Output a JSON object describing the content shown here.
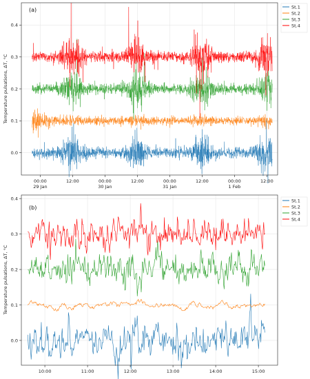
{
  "colors": {
    "St.1": "#1f77b4",
    "St.2": "#ff7f0e",
    "St.3": "#2ca02c",
    "St.4": "#ff0000"
  },
  "chart_data": [
    {
      "type": "line",
      "panel_label": "(a)",
      "ylabel": "Temperature pulsations, ΔT, °C",
      "ylim": [
        -0.07,
        0.47
      ],
      "yticks": [
        0.0,
        0.1,
        0.2,
        0.3,
        0.4
      ],
      "ytick_labels": [
        "0.0",
        "0.1",
        "0.2",
        "0.3",
        "0.4"
      ],
      "xlim_hours": [
        -7,
        66
      ],
      "xticks": [
        {
          "hour": 0,
          "line1": "00:00",
          "line2": "29 Jan"
        },
        {
          "hour": 12,
          "line1": "12:00",
          "line2": ""
        },
        {
          "hour": 24,
          "line1": "00:00",
          "line2": "30 Jan"
        },
        {
          "hour": 36,
          "line1": "12:00",
          "line2": ""
        },
        {
          "hour": 48,
          "line1": "00:00",
          "line2": "31 Jan"
        },
        {
          "hour": 60,
          "line1": "12:00",
          "line2": ""
        },
        {
          "hour": 72,
          "line1": "00:00",
          "line2": "1 Feb"
        },
        {
          "hour": 84,
          "line1": "12:00",
          "line2": ""
        }
      ],
      "grid": true,
      "legend": "top-right",
      "series": [
        {
          "name": "St.1",
          "offset": 0.0,
          "start_hour": -3,
          "end_hour": 86
        },
        {
          "name": "St.2",
          "offset": 0.1,
          "start_hour": -3,
          "end_hour": 86
        },
        {
          "name": "St.3",
          "offset": 0.2,
          "start_hour": -3,
          "end_hour": 86
        },
        {
          "name": "St.4",
          "offset": 0.3,
          "start_hour": -3,
          "end_hour": 86
        }
      ]
    },
    {
      "type": "line",
      "panel_label": "(b)",
      "ylabel": "Temperature pulsations, ΔT, °C",
      "ylim": [
        -0.07,
        0.41
      ],
      "yticks": [
        0.0,
        0.1,
        0.2,
        0.3,
        0.4
      ],
      "ytick_labels": [
        "0.0",
        "0.1",
        "0.2",
        "0.3",
        "0.4"
      ],
      "xticks": [
        {
          "hour": 10,
          "line1": "10:00"
        },
        {
          "hour": 11,
          "line1": "11:00"
        },
        {
          "hour": 12,
          "line1": "12:00"
        },
        {
          "hour": 13,
          "line1": "13:00"
        },
        {
          "hour": 14,
          "line1": "14:00"
        },
        {
          "hour": 15,
          "line1": "15:00"
        }
      ],
      "grid": true,
      "legend": "top-right",
      "series": [
        {
          "name": "St.1",
          "offset": 0.0,
          "start_hour": 9.6,
          "end_hour": 15.15
        },
        {
          "name": "St.2",
          "offset": 0.1,
          "start_hour": 9.6,
          "end_hour": 15.15
        },
        {
          "name": "St.3",
          "offset": 0.2,
          "start_hour": 9.6,
          "end_hour": 15.15
        },
        {
          "name": "St.4",
          "offset": 0.3,
          "start_hour": 9.6,
          "end_hour": 15.15
        }
      ]
    }
  ]
}
